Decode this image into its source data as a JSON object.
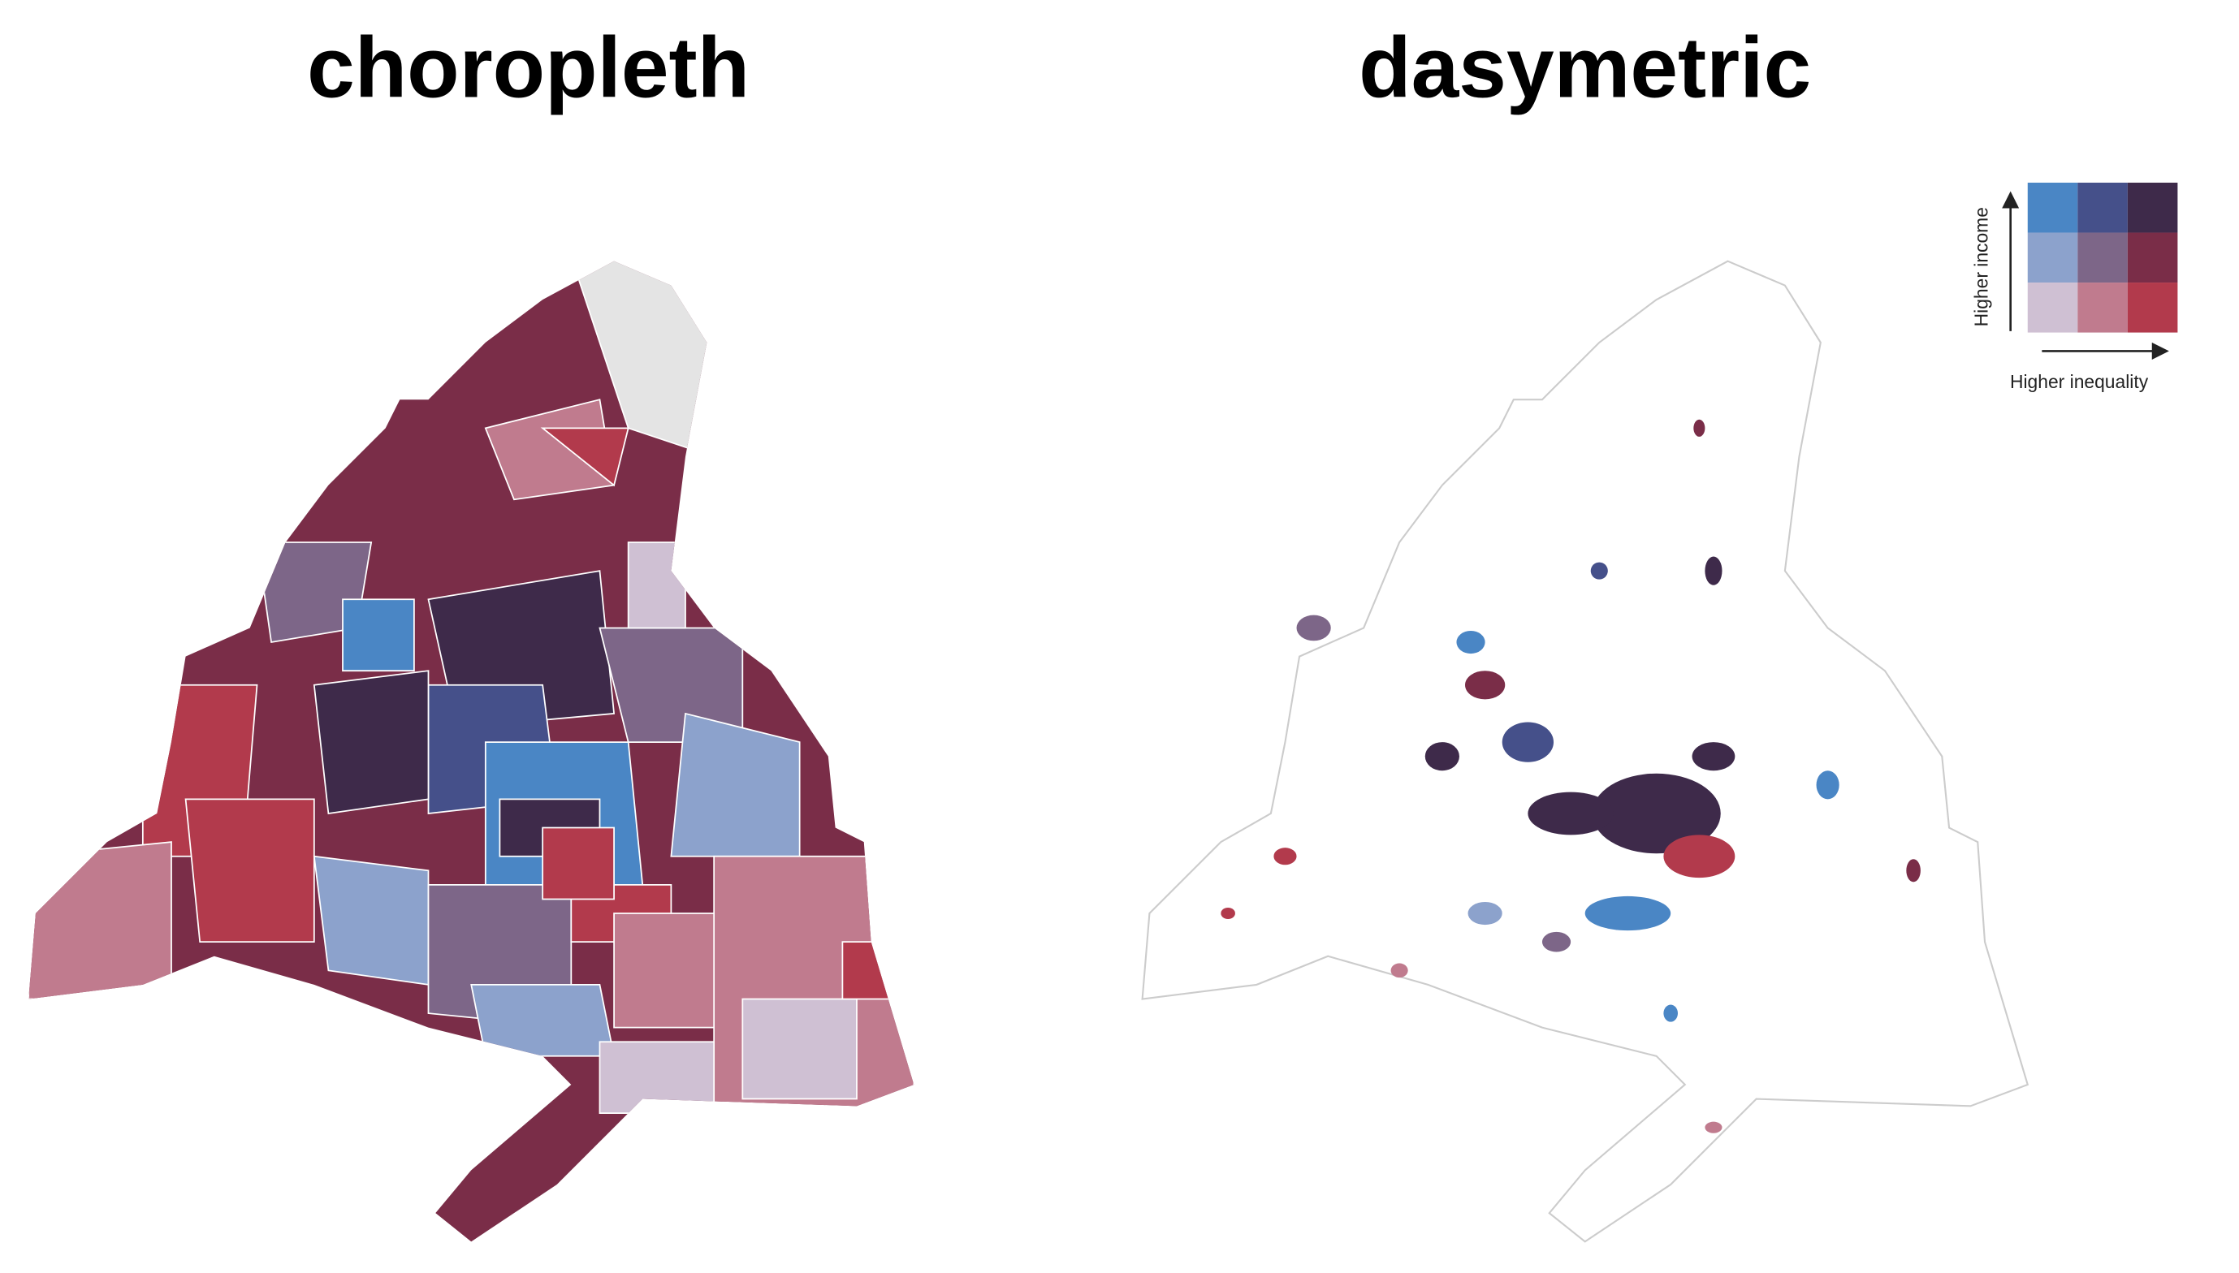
{
  "titles": [
    "choropleth",
    "dasymetric"
  ],
  "legend": {
    "y_label": "Higher income",
    "x_label": "Higher inequality",
    "colors": [
      [
        "#4a86c5",
        "#45508a",
        "#3e2a4a"
      ],
      [
        "#8ca2cc",
        "#7d6688",
        "#7a2d48"
      ],
      [
        "#cfc0d3",
        "#c07b8e",
        "#b23a4c"
      ]
    ]
  }
}
